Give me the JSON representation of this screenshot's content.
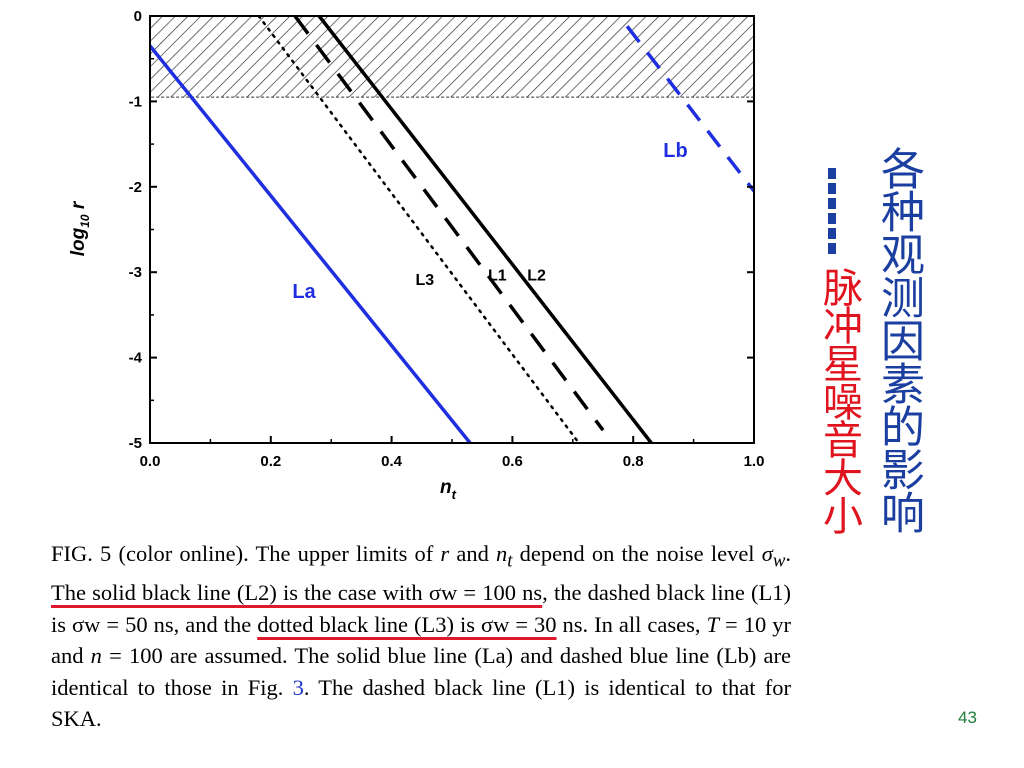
{
  "chart_data": {
    "type": "line",
    "xlabel": "n_t",
    "ylabel": "log10 r",
    "xlim": [
      0.0,
      1.0
    ],
    "ylim": [
      -5,
      0
    ],
    "x_ticks": [
      "0.0",
      "0.2",
      "0.4",
      "0.6",
      "0.8",
      "1.0"
    ],
    "y_ticks": [
      "0",
      "-1",
      "-2",
      "-3",
      "-4",
      "-5"
    ],
    "x_tick_values": [
      0.0,
      0.2,
      0.4,
      0.6,
      0.8,
      1.0
    ],
    "y_tick_values": [
      0,
      -1,
      -2,
      -3,
      -4,
      -5
    ],
    "excluded_region": {
      "y_from": -0.95,
      "y_to": 0,
      "pattern": "hatched"
    },
    "series": [
      {
        "name": "La",
        "color": "#1f2fe0",
        "style": "solid",
        "x": [
          0.0,
          0.53
        ],
        "y": [
          -0.35,
          -5.0
        ]
      },
      {
        "name": "Lb",
        "color": "#1f2fe0",
        "style": "dashed",
        "x": [
          0.79,
          1.0
        ],
        "y": [
          -0.12,
          -2.05
        ]
      },
      {
        "name": "L3",
        "color": "#000000",
        "style": "dotted",
        "x": [
          0.18,
          0.71
        ],
        "y": [
          0.0,
          -5.0
        ]
      },
      {
        "name": "L1",
        "color": "#000000",
        "style": "dashed",
        "x": [
          0.24,
          0.75
        ],
        "y": [
          0.0,
          -4.85
        ]
      },
      {
        "name": "L2",
        "color": "#000000",
        "style": "solid",
        "x": [
          0.28,
          0.83
        ],
        "y": [
          0.0,
          -5.0
        ]
      }
    ],
    "labels": [
      {
        "text": "La",
        "x": 0.255,
        "y": -3.3,
        "color": "#1f2fe0"
      },
      {
        "text": "Lb",
        "x": 0.87,
        "y": -1.65,
        "color": "#1f2fe0"
      },
      {
        "text": "L3",
        "x": 0.455,
        "y": -3.15,
        "color": "#000000"
      },
      {
        "text": "L1",
        "x": 0.575,
        "y": -3.1,
        "color": "#000000"
      },
      {
        "text": "L2",
        "x": 0.64,
        "y": -3.1,
        "color": "#000000"
      }
    ]
  },
  "caption": {
    "lead": "FIG. 5 (color online).    The upper limits of ",
    "r": "r",
    "and": " and ",
    "n": "n",
    "t": "t",
    "depend": " depend on the noise level ",
    "sigma": "σ",
    "w": "w",
    "period": ". ",
    "u1": "The solid black line (L2) is the case with σw = 100 ns",
    "mid1": ", the dashed black line (L1) is σw = 50 ns, and the ",
    "u2": "dotted black line (L3) is σw = 30",
    "mid2": " ns. In all cases, ",
    "T": "T",
    "mid3": " = 10 yr and ",
    "nn": "n",
    "mid4": " = 100 are assumed. The solid blue line (La) and dashed blue line (Lb) are identical to those in Fig. ",
    "ref": "3",
    "mid5": ". The dashed black line (L1) is identical to that for SKA."
  },
  "legend": {
    "blue_text": "各种观测因素的影响",
    "red_text": "脉冲星噪音大小"
  },
  "page_number": "43"
}
